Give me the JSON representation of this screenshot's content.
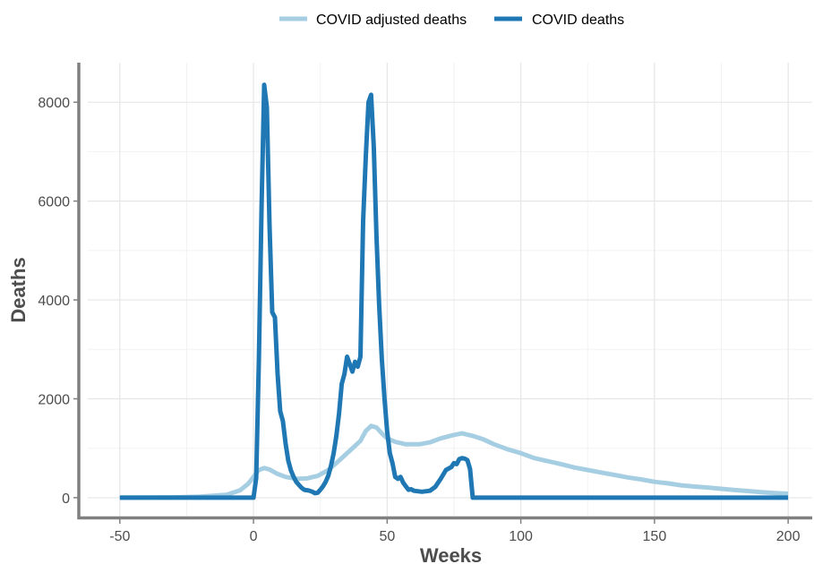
{
  "chart_data": {
    "type": "line",
    "xlabel": "Weeks",
    "ylabel": "Deaths",
    "xlim": [
      -62,
      209
    ],
    "ylim": [
      -400,
      8800
    ],
    "x_ticks": [
      -50,
      0,
      50,
      100,
      150,
      200
    ],
    "x_tick_labels": [
      "-50",
      "0",
      "50",
      "100",
      "150",
      "200"
    ],
    "y_ticks": [
      0,
      2000,
      4000,
      6000,
      8000
    ],
    "y_tick_labels": [
      "0",
      "2000",
      "4000",
      "6000",
      "8000"
    ],
    "grid": true,
    "legend_position": "top",
    "series": [
      {
        "name": "COVID adjusted deaths",
        "color": "#a6cee3",
        "points": [
          [
            -50,
            0
          ],
          [
            -30,
            5
          ],
          [
            -20,
            20
          ],
          [
            -10,
            60
          ],
          [
            -5,
            150
          ],
          [
            -2,
            280
          ],
          [
            0,
            420
          ],
          [
            2,
            560
          ],
          [
            4,
            600
          ],
          [
            6,
            570
          ],
          [
            9,
            480
          ],
          [
            12,
            420
          ],
          [
            16,
            380
          ],
          [
            20,
            390
          ],
          [
            24,
            440
          ],
          [
            28,
            560
          ],
          [
            32,
            750
          ],
          [
            36,
            950
          ],
          [
            40,
            1150
          ],
          [
            42,
            1350
          ],
          [
            44,
            1450
          ],
          [
            46,
            1420
          ],
          [
            48,
            1300
          ],
          [
            50,
            1200
          ],
          [
            53,
            1130
          ],
          [
            57,
            1080
          ],
          [
            62,
            1080
          ],
          [
            66,
            1120
          ],
          [
            70,
            1200
          ],
          [
            75,
            1270
          ],
          [
            78,
            1300
          ],
          [
            82,
            1250
          ],
          [
            86,
            1180
          ],
          [
            90,
            1080
          ],
          [
            95,
            980
          ],
          [
            100,
            900
          ],
          [
            105,
            800
          ],
          [
            110,
            740
          ],
          [
            115,
            680
          ],
          [
            120,
            610
          ],
          [
            125,
            560
          ],
          [
            130,
            510
          ],
          [
            135,
            460
          ],
          [
            140,
            410
          ],
          [
            145,
            370
          ],
          [
            150,
            320
          ],
          [
            155,
            290
          ],
          [
            160,
            250
          ],
          [
            165,
            225
          ],
          [
            170,
            205
          ],
          [
            175,
            180
          ],
          [
            180,
            155
          ],
          [
            185,
            135
          ],
          [
            190,
            110
          ],
          [
            195,
            95
          ],
          [
            200,
            80
          ]
        ]
      },
      {
        "name": "COVID deaths",
        "color": "#1f78b4",
        "points": [
          [
            -50,
            0
          ],
          [
            0,
            0
          ],
          [
            1,
            400
          ],
          [
            2,
            2800
          ],
          [
            3,
            5800
          ],
          [
            4,
            8350
          ],
          [
            5,
            7900
          ],
          [
            6,
            5500
          ],
          [
            7,
            3750
          ],
          [
            8,
            3650
          ],
          [
            9,
            2500
          ],
          [
            10,
            1750
          ],
          [
            11,
            1550
          ],
          [
            12,
            1100
          ],
          [
            13,
            750
          ],
          [
            14,
            550
          ],
          [
            15,
            420
          ],
          [
            16,
            320
          ],
          [
            17,
            260
          ],
          [
            18,
            200
          ],
          [
            19,
            160
          ],
          [
            20,
            150
          ],
          [
            21,
            140
          ],
          [
            22,
            120
          ],
          [
            23,
            90
          ],
          [
            24,
            100
          ],
          [
            25,
            160
          ],
          [
            26,
            230
          ],
          [
            27,
            320
          ],
          [
            28,
            450
          ],
          [
            29,
            650
          ],
          [
            30,
            900
          ],
          [
            31,
            1250
          ],
          [
            32,
            1700
          ],
          [
            33,
            2300
          ],
          [
            34,
            2500
          ],
          [
            35,
            2850
          ],
          [
            36,
            2700
          ],
          [
            37,
            2550
          ],
          [
            38,
            2750
          ],
          [
            39,
            2650
          ],
          [
            40,
            2850
          ],
          [
            41,
            5600
          ],
          [
            42,
            6900
          ],
          [
            43,
            8000
          ],
          [
            44,
            8150
          ],
          [
            45,
            7100
          ],
          [
            46,
            5300
          ],
          [
            47,
            3900
          ],
          [
            48,
            2800
          ],
          [
            49,
            2000
          ],
          [
            50,
            1350
          ],
          [
            51,
            900
          ],
          [
            52,
            700
          ],
          [
            53,
            420
          ],
          [
            54,
            380
          ],
          [
            55,
            420
          ],
          [
            56,
            300
          ],
          [
            57,
            230
          ],
          [
            58,
            160
          ],
          [
            59,
            170
          ],
          [
            60,
            140
          ],
          [
            63,
            120
          ],
          [
            66,
            140
          ],
          [
            68,
            220
          ],
          [
            70,
            380
          ],
          [
            72,
            560
          ],
          [
            74,
            620
          ],
          [
            75,
            700
          ],
          [
            76,
            680
          ],
          [
            77,
            780
          ],
          [
            78,
            800
          ],
          [
            79,
            790
          ],
          [
            80,
            760
          ],
          [
            81,
            580
          ],
          [
            82,
            0
          ],
          [
            90,
            0
          ],
          [
            120,
            0
          ],
          [
            150,
            0
          ],
          [
            200,
            0
          ]
        ]
      }
    ]
  }
}
